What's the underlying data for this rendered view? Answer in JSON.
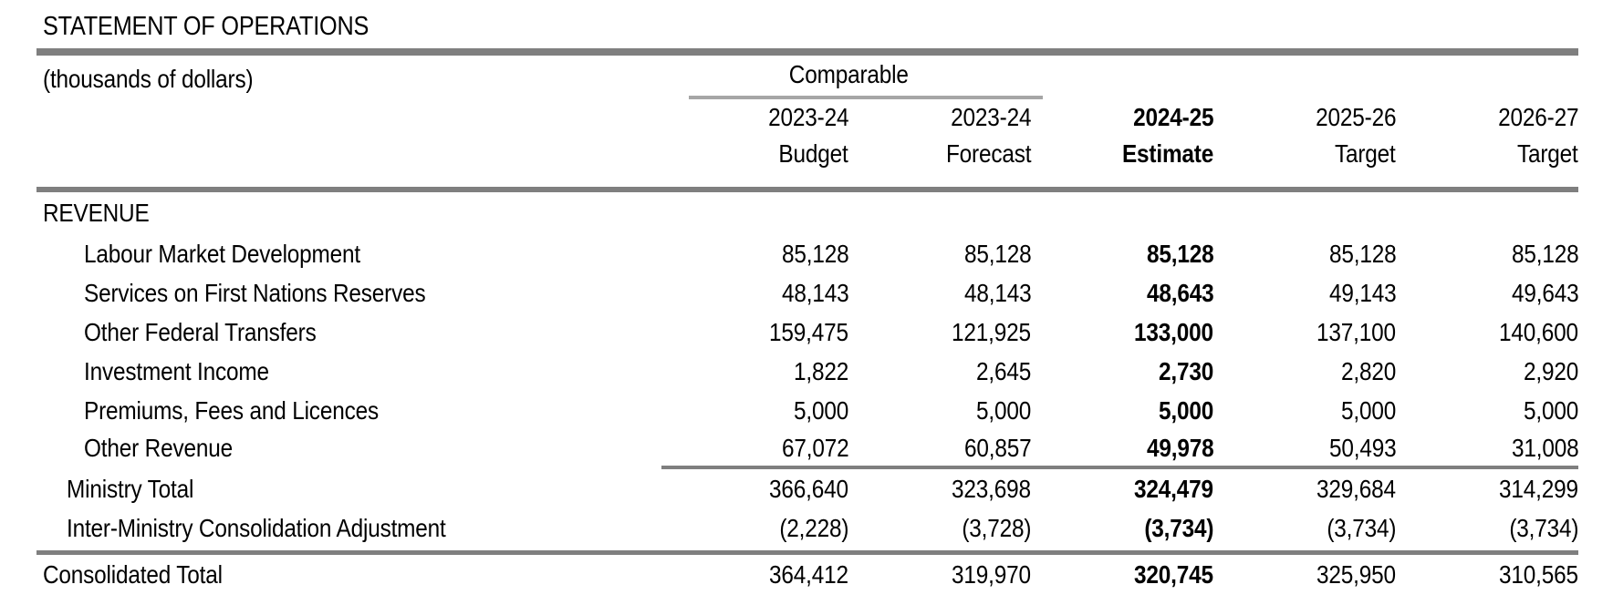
{
  "page": {
    "title": "STATEMENT OF OPERATIONS",
    "units_note": "(thousands of dollars)"
  },
  "colors": {
    "background": "#ffffff",
    "text": "#000000",
    "rule_dark": "#7f7f7f",
    "rule_light": "#a6a6a6"
  },
  "table": {
    "comparable_label": "Comparable",
    "columns": [
      {
        "year": "2023-24",
        "type": "Budget",
        "emphasis": false
      },
      {
        "year": "2023-24",
        "type": "Forecast",
        "emphasis": false
      },
      {
        "year": "2024-25",
        "type": "Estimate",
        "emphasis": true
      },
      {
        "year": "2025-26",
        "type": "Target",
        "emphasis": false
      },
      {
        "year": "2026-27",
        "type": "Target",
        "emphasis": false
      }
    ],
    "section_header": "REVENUE",
    "rows": [
      {
        "label": "Labour Market Development",
        "values": [
          "85,128",
          "85,128",
          "85,128",
          "85,128",
          "85,128"
        ]
      },
      {
        "label": "Services on First Nations Reserves",
        "values": [
          "48,143",
          "48,143",
          "48,643",
          "49,143",
          "49,643"
        ]
      },
      {
        "label": "Other Federal Transfers",
        "values": [
          "159,475",
          "121,925",
          "133,000",
          "137,100",
          "140,600"
        ]
      },
      {
        "label": "Investment Income",
        "values": [
          "1,822",
          "2,645",
          "2,730",
          "2,820",
          "2,920"
        ]
      },
      {
        "label": "Premiums, Fees and Licences",
        "values": [
          "5,000",
          "5,000",
          "5,000",
          "5,000",
          "5,000"
        ]
      },
      {
        "label": "Other Revenue",
        "values": [
          "67,072",
          "60,857",
          "49,978",
          "50,493",
          "31,008"
        ]
      },
      {
        "label": "Ministry Total",
        "values": [
          "366,640",
          "323,698",
          "324,479",
          "329,684",
          "314,299"
        ]
      },
      {
        "label": "Inter-Ministry Consolidation Adjustment",
        "values": [
          "(2,228)",
          "(3,728)",
          "(3,734)",
          "(3,734)",
          "(3,734)"
        ]
      },
      {
        "label": "Consolidated Total",
        "values": [
          "364,412",
          "319,970",
          "320,745",
          "325,950",
          "310,565"
        ]
      }
    ]
  }
}
